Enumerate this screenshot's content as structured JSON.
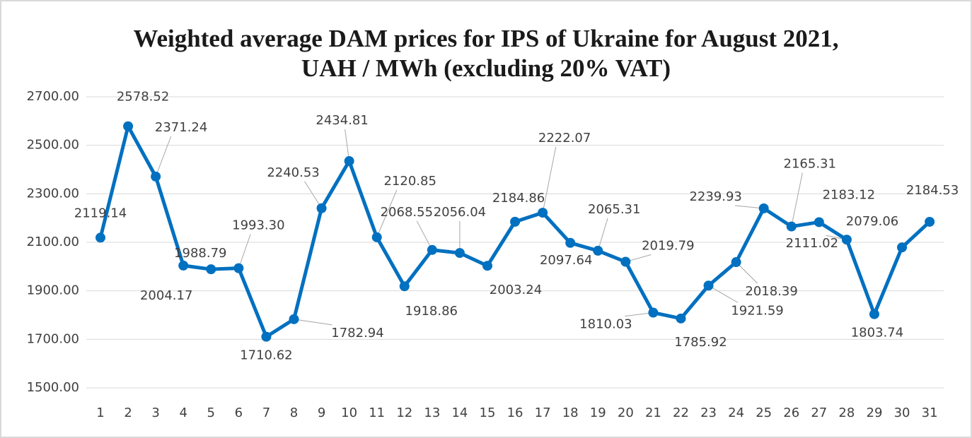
{
  "chart_data": {
    "type": "line",
    "title": [
      "Weighted average DAM prices for IPS of Ukraine for August 2021,",
      "UAH / MWh (excluding 20% VAT)"
    ],
    "categories": [
      1,
      2,
      3,
      4,
      5,
      6,
      7,
      8,
      9,
      10,
      11,
      12,
      13,
      14,
      15,
      16,
      17,
      18,
      19,
      20,
      21,
      22,
      23,
      24,
      25,
      26,
      27,
      28,
      29,
      30,
      31
    ],
    "series": [
      {
        "name": "Weighted average DAM price",
        "color": "#0070c0",
        "values": [
          2119.14,
          2578.52,
          2371.24,
          2004.17,
          1988.79,
          1993.3,
          1710.62,
          1782.94,
          2240.53,
          2434.81,
          2120.85,
          1918.86,
          2068.55,
          2056.04,
          2003.24,
          2184.86,
          2222.07,
          2097.64,
          2065.31,
          2019.79,
          1810.03,
          1785.92,
          1921.59,
          2018.39,
          2239.93,
          2165.31,
          2183.12,
          2111.02,
          1803.74,
          2079.06,
          2184.53
        ],
        "value_labels": [
          "2119.14",
          "2578.52",
          "2371.24",
          "2004.17",
          "1988.79",
          "1993.30",
          "1710.62",
          "1782.94",
          "2240.53",
          "2434.81",
          "2120.85",
          "1918.86",
          "2068.55",
          "2056.04",
          "2003.24",
          "2184.86",
          "2222.07",
          "2097.64",
          "2065.31",
          "2019.79",
          "1810.03",
          "1785.92",
          "1921.59",
          "2018.39",
          "2239.93",
          "2165.31",
          "2183.12",
          "2111.02",
          "1803.74",
          "2079.06",
          "2184.53"
        ]
      }
    ],
    "ylim": [
      1500,
      2700
    ],
    "yticks": [
      {
        "value": 1500,
        "label": "1500.00"
      },
      {
        "value": 1700,
        "label": "1700.00"
      },
      {
        "value": 1900,
        "label": "1900.00"
      },
      {
        "value": 2100,
        "label": "2100.00"
      },
      {
        "value": 2300,
        "label": "2300.00"
      },
      {
        "value": 2500,
        "label": "2500.00"
      },
      {
        "value": 2700,
        "label": "2700.00"
      }
    ],
    "grid": true
  }
}
